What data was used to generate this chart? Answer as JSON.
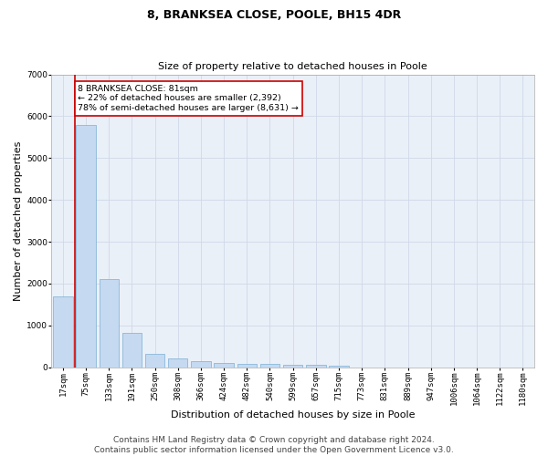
{
  "title": "8, BRANKSEA CLOSE, POOLE, BH15 4DR",
  "subtitle": "Size of property relative to detached houses in Poole",
  "xlabel": "Distribution of detached houses by size in Poole",
  "ylabel": "Number of detached properties",
  "footer_line1": "Contains HM Land Registry data © Crown copyright and database right 2024.",
  "footer_line2": "Contains public sector information licensed under the Open Government Licence v3.0.",
  "categories": [
    "17sqm",
    "75sqm",
    "133sqm",
    "191sqm",
    "250sqm",
    "308sqm",
    "366sqm",
    "424sqm",
    "482sqm",
    "540sqm",
    "599sqm",
    "657sqm",
    "715sqm",
    "773sqm",
    "831sqm",
    "889sqm",
    "947sqm",
    "1006sqm",
    "1064sqm",
    "1122sqm",
    "1180sqm"
  ],
  "values": [
    1700,
    5800,
    2100,
    820,
    330,
    210,
    150,
    110,
    90,
    70,
    60,
    50,
    40,
    0,
    0,
    0,
    0,
    0,
    0,
    0,
    0
  ],
  "bar_color": "#c5d9f1",
  "bar_edge_color": "#7bafd4",
  "ylim": [
    0,
    7000
  ],
  "yticks": [
    0,
    1000,
    2000,
    3000,
    4000,
    5000,
    6000,
    7000
  ],
  "vline_color": "#cc0000",
  "vline_x": 0.5,
  "annotation_text": "8 BRANKSEA CLOSE: 81sqm\n← 22% of detached houses are smaller (2,392)\n78% of semi-detached houses are larger (8,631) →",
  "annotation_box_color": "#cc0000",
  "grid_color": "#d0d8e8",
  "background_color": "#eaf0f8",
  "title_fontsize": 9,
  "subtitle_fontsize": 8,
  "axis_fontsize": 8,
  "tick_fontsize": 6.5,
  "footer_fontsize": 6.5
}
